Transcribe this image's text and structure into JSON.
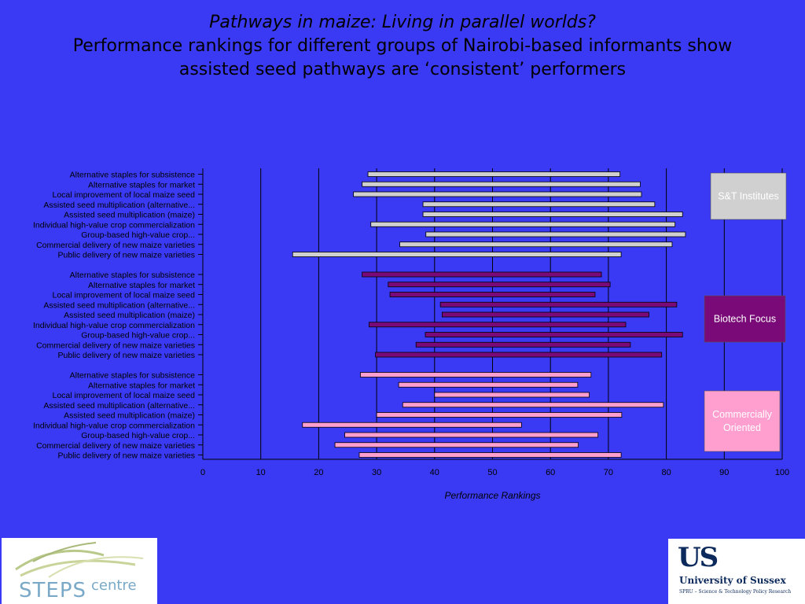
{
  "title": {
    "line1": "Pathways in maize: Living in parallel worlds?",
    "line2": "Performance rankings for different groups of Nairobi-based informants show",
    "line3": "assisted seed pathways are ‘consistent’ performers"
  },
  "logos": {
    "steps_word": "STEPS",
    "steps_centre": "centre",
    "sussex_mark": "US",
    "sussex_name": "University of Sussex",
    "sussex_sub": "SPRU – Science & Technology Policy Research"
  },
  "chart_data": {
    "type": "bar",
    "orientation": "horizontal-range",
    "xlabel": "Performance Rankings",
    "xlim": [
      0,
      100
    ],
    "xticks": [
      0,
      10,
      20,
      30,
      40,
      50,
      60,
      70,
      80,
      90,
      100
    ],
    "grid": true,
    "legend_position": "right",
    "categories": [
      "Alternative staples for subsistence",
      "Alternative staples for market",
      "Local improvement of local maize seed",
      "Assisted seed multiplication (alternative...",
      "Assisted seed multiplication (maize)",
      "Individual high-value crop commercialization",
      "Group-based high-value crop...",
      "Commercial delivery of new maize varieties",
      "Public delivery of new maize varieties"
    ],
    "series": [
      {
        "name": "S&T Institutes",
        "color": "#d0d0d0",
        "ranges": [
          [
            28.5,
            72
          ],
          [
            27.5,
            75.5
          ],
          [
            26,
            75.7
          ],
          [
            38,
            78
          ],
          [
            38,
            82.8
          ],
          [
            29,
            81.5
          ],
          [
            38.5,
            83.3
          ],
          [
            34,
            81
          ],
          [
            15.5,
            72.2
          ]
        ]
      },
      {
        "name": "Biotech Focus",
        "color": "#7a0a78",
        "ranges": [
          [
            27.5,
            68.8
          ],
          [
            32,
            70.3
          ],
          [
            32.3,
            67.7
          ],
          [
            41,
            81.8
          ],
          [
            41.3,
            77
          ],
          [
            28.7,
            73
          ],
          [
            38.4,
            82.8
          ],
          [
            36.8,
            73.8
          ],
          [
            29.8,
            79.2
          ]
        ]
      },
      {
        "name": "Commercially\nOriented",
        "color": "#ff9fd0",
        "ranges": [
          [
            27.2,
            67
          ],
          [
            33.8,
            64.7
          ],
          [
            40,
            66.7
          ],
          [
            34.5,
            79.5
          ],
          [
            30,
            72.3
          ],
          [
            17.2,
            55
          ],
          [
            24.5,
            68.2
          ],
          [
            22.8,
            64.8
          ],
          [
            27,
            72.2
          ]
        ]
      }
    ]
  }
}
